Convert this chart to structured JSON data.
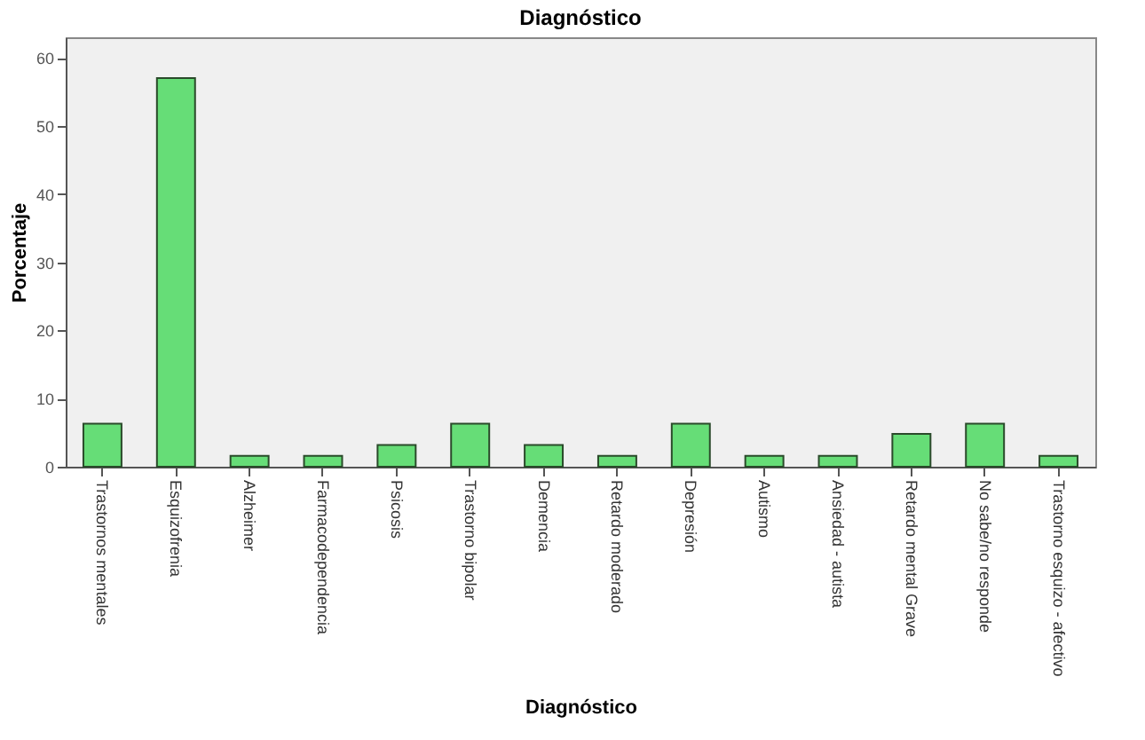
{
  "chart_data": {
    "type": "bar",
    "title": "Diagnóstico",
    "xlabel": "Diagnóstico",
    "ylabel": "Porcentaje",
    "categories": [
      "Trastornos mentales",
      "Esquizofrenia",
      "Alzheimer",
      "Farmacodependencia",
      "Psicosis",
      "Trastorno bipolar",
      "Demencia",
      "Retardo moderado",
      "Depresión",
      "Autismo",
      "Ansiedad - autista",
      "Retardo mental Grave",
      "No sabe/no responde",
      "Trastorno esquizo - afectivo"
    ],
    "values": [
      6.3,
      57,
      1.6,
      1.6,
      3.2,
      6.3,
      3.2,
      1.6,
      6.3,
      1.6,
      1.6,
      4.8,
      6.3,
      1.6
    ],
    "color": "#66dd77",
    "ylim": [
      0,
      63
    ],
    "yticks": [
      0,
      10,
      20,
      30,
      40,
      50,
      60
    ],
    "grid": false
  }
}
